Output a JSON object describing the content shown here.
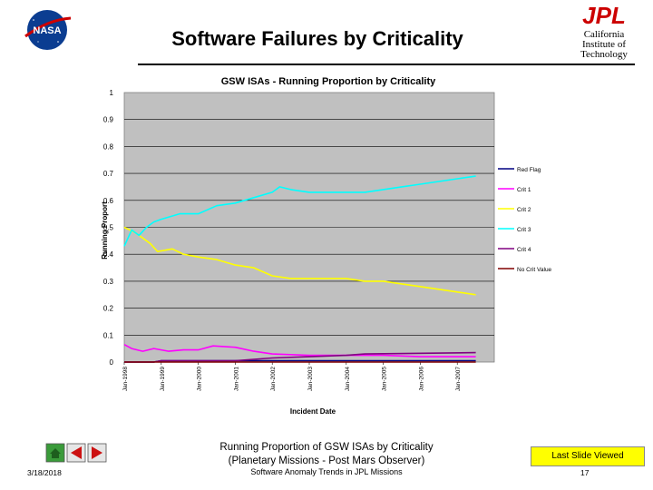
{
  "header": {
    "title": "Software Failures by Criticality",
    "jpl_logo_text": "JPL",
    "nasa_logo_text": "NASA",
    "institution": [
      "California",
      "Institute of",
      "Technology"
    ]
  },
  "footer": {
    "caption_line1": "Running Proportion of GSW ISAs by Criticality",
    "caption_line2": "(Planetary Missions - Post Mars Observer)",
    "subtitle": "Software Anomaly Trends in JPL Missions",
    "date": "3/18/2018",
    "page_number": "17",
    "last_slide_label": "Last Slide Viewed"
  },
  "colors": {
    "plot_background": "#c0c0c0",
    "nav_home": "#3a9b3a",
    "nav_arrows": "#cc1111",
    "last_slide_bg": "#ffff00"
  },
  "chart_data": {
    "type": "line",
    "title": "GSW ISAs - Running Proportion by Criticality",
    "xlabel": "Incident Date",
    "ylabel": "Running Proport",
    "ylim": [
      0,
      1
    ],
    "yticks": [
      "0",
      "0.1",
      "0.2",
      "0.3",
      "0.4",
      "0.5",
      "0.6",
      "0.7",
      "0.8",
      "0.9",
      "1"
    ],
    "xticks": [
      "Jan-1998",
      "Jan-1999",
      "Jan-2000",
      "Jan-2001",
      "Jan-2002",
      "Jan-2003",
      "Jan-2004",
      "Jan-2005",
      "Jan-2006",
      "Jan-2007"
    ],
    "grid": true,
    "legend_position": "right",
    "series": [
      {
        "name": "Red Flag",
        "color": "#000080",
        "x": [
          0,
          0.8,
          1.0,
          9.5
        ],
        "y": [
          0,
          0,
          0.005,
          0.005
        ]
      },
      {
        "name": "Crit 1",
        "color": "#ff00ff",
        "x": [
          0,
          0.2,
          0.5,
          0.8,
          1.2,
          1.6,
          2.0,
          2.4,
          3.0,
          3.5,
          4.0,
          5.0,
          6.0,
          7.0,
          8.0,
          9.5
        ],
        "y": [
          0.065,
          0.05,
          0.04,
          0.05,
          0.04,
          0.045,
          0.045,
          0.06,
          0.055,
          0.04,
          0.03,
          0.025,
          0.025,
          0.025,
          0.02,
          0.02
        ]
      },
      {
        "name": "Crit 2",
        "color": "#ffff00",
        "x": [
          0,
          0.3,
          0.7,
          0.9,
          1.3,
          1.6,
          2.0,
          2.5,
          3.0,
          3.5,
          4.0,
          4.5,
          5.0,
          6.0,
          6.5,
          7.0,
          7.5,
          8.0,
          8.5,
          9.0,
          9.5
        ],
        "y": [
          0.5,
          0.48,
          0.44,
          0.41,
          0.42,
          0.4,
          0.39,
          0.38,
          0.36,
          0.35,
          0.32,
          0.31,
          0.31,
          0.31,
          0.3,
          0.3,
          0.29,
          0.28,
          0.27,
          0.26,
          0.25
        ]
      },
      {
        "name": "Crit 3",
        "color": "#00ffff",
        "x": [
          0,
          0.2,
          0.4,
          0.6,
          0.8,
          1.0,
          1.5,
          2.0,
          2.5,
          3.0,
          3.5,
          4.0,
          4.2,
          4.5,
          5.0,
          5.5,
          6.0,
          6.5,
          7.0,
          7.5,
          8.0,
          8.5,
          9.0,
          9.5
        ],
        "y": [
          0.43,
          0.49,
          0.47,
          0.5,
          0.52,
          0.53,
          0.55,
          0.55,
          0.58,
          0.59,
          0.61,
          0.63,
          0.65,
          0.64,
          0.63,
          0.63,
          0.63,
          0.63,
          0.64,
          0.65,
          0.66,
          0.67,
          0.68,
          0.69
        ]
      },
      {
        "name": "Crit 4",
        "color": "#800080",
        "x": [
          0,
          0.8,
          1.0,
          3.0,
          3.5,
          4.0,
          5.0,
          6.0,
          6.5,
          9.5
        ],
        "y": [
          0,
          0,
          0.005,
          0.005,
          0.01,
          0.015,
          0.02,
          0.025,
          0.03,
          0.035
        ]
      },
      {
        "name": "No Crit Value",
        "color": "#800000",
        "x": [
          0,
          9.5
        ],
        "y": [
          0,
          0
        ]
      }
    ]
  }
}
